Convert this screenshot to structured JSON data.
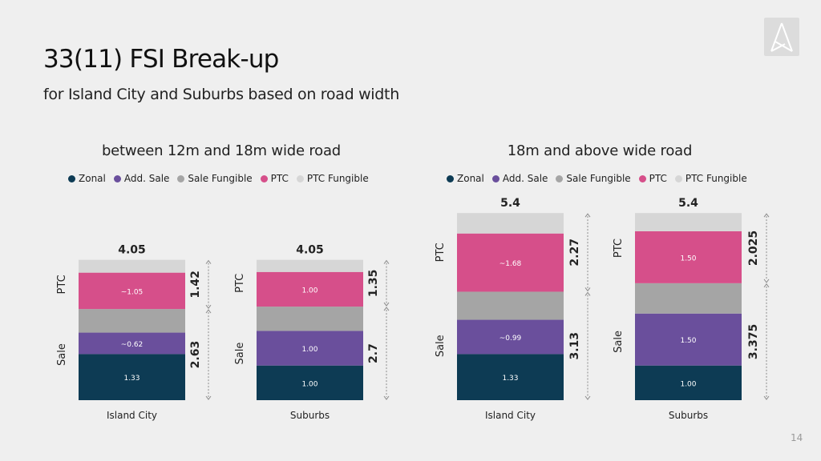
{
  "header": {
    "title": "33(11) FSI Break-up",
    "subtitle": "for Island City and Suburbs based on road width"
  },
  "page_number": "14",
  "legend": {
    "items": [
      {
        "label": "Zonal",
        "color": "#0d3b54"
      },
      {
        "label": "Add. Sale",
        "color": "#6a4f9c"
      },
      {
        "label": "Sale Fungible",
        "color": "#a5a5a5"
      },
      {
        "label": "PTC",
        "color": "#d64f8a"
      },
      {
        "label": "PTC Fungible",
        "color": "#d6d6d6"
      }
    ]
  },
  "chart_data": [
    {
      "type": "bar",
      "stacked": true,
      "title": "between 12m and 18m wide road",
      "categories": [
        "Island City",
        "Suburbs"
      ],
      "series": [
        {
          "name": "Zonal",
          "color": "#0d3b54",
          "values": [
            1.33,
            1.0
          ],
          "labels": [
            "1.33",
            "1.00"
          ]
        },
        {
          "name": "Add. Sale",
          "color": "#6a4f9c",
          "values": [
            0.62,
            1.0
          ],
          "labels": [
            "~0.62",
            "1.00"
          ]
        },
        {
          "name": "Sale Fungible",
          "color": "#a5a5a5",
          "values": [
            0.68,
            0.7
          ],
          "labels": [
            "",
            ""
          ]
        },
        {
          "name": "PTC",
          "color": "#d64f8a",
          "values": [
            1.05,
            1.0
          ],
          "labels": [
            "~1.05",
            "1.00"
          ]
        },
        {
          "name": "PTC Fungible",
          "color": "#d6d6d6",
          "values": [
            0.37,
            0.35
          ],
          "labels": [
            "",
            ""
          ]
        }
      ],
      "totals": [
        "4.05",
        "4.05"
      ],
      "brackets": [
        {
          "sale_label": "Sale",
          "ptc_label": "PTC",
          "sale_value": "2.63",
          "ptc_value": "1.42"
        },
        {
          "sale_label": "Sale",
          "ptc_label": "PTC",
          "sale_value": "2.7",
          "ptc_value": "1.35"
        }
      ],
      "ylim": [
        0,
        4.05
      ]
    },
    {
      "type": "bar",
      "stacked": true,
      "title": "18m and above wide road",
      "categories": [
        "Island City",
        "Suburbs"
      ],
      "series": [
        {
          "name": "Zonal",
          "color": "#0d3b54",
          "values": [
            1.33,
            1.0
          ],
          "labels": [
            "1.33",
            "1.00"
          ]
        },
        {
          "name": "Add. Sale",
          "color": "#6a4f9c",
          "values": [
            0.99,
            1.5
          ],
          "labels": [
            "~0.99",
            "1.50"
          ]
        },
        {
          "name": "Sale Fungible",
          "color": "#a5a5a5",
          "values": [
            0.81,
            0.875
          ],
          "labels": [
            "",
            ""
          ]
        },
        {
          "name": "PTC",
          "color": "#d64f8a",
          "values": [
            1.68,
            1.5
          ],
          "labels": [
            "~1.68",
            "1.50"
          ]
        },
        {
          "name": "PTC Fungible",
          "color": "#d6d6d6",
          "values": [
            0.59,
            0.525
          ],
          "labels": [
            "",
            ""
          ]
        }
      ],
      "totals": [
        "5.4",
        "5.4"
      ],
      "brackets": [
        {
          "sale_label": "Sale",
          "ptc_label": "PTC",
          "sale_value": "3.13",
          "ptc_value": "2.27"
        },
        {
          "sale_label": "Sale",
          "ptc_label": "PTC",
          "sale_value": "3.375",
          "ptc_value": "2.025"
        }
      ],
      "ylim": [
        0,
        5.4
      ]
    }
  ]
}
